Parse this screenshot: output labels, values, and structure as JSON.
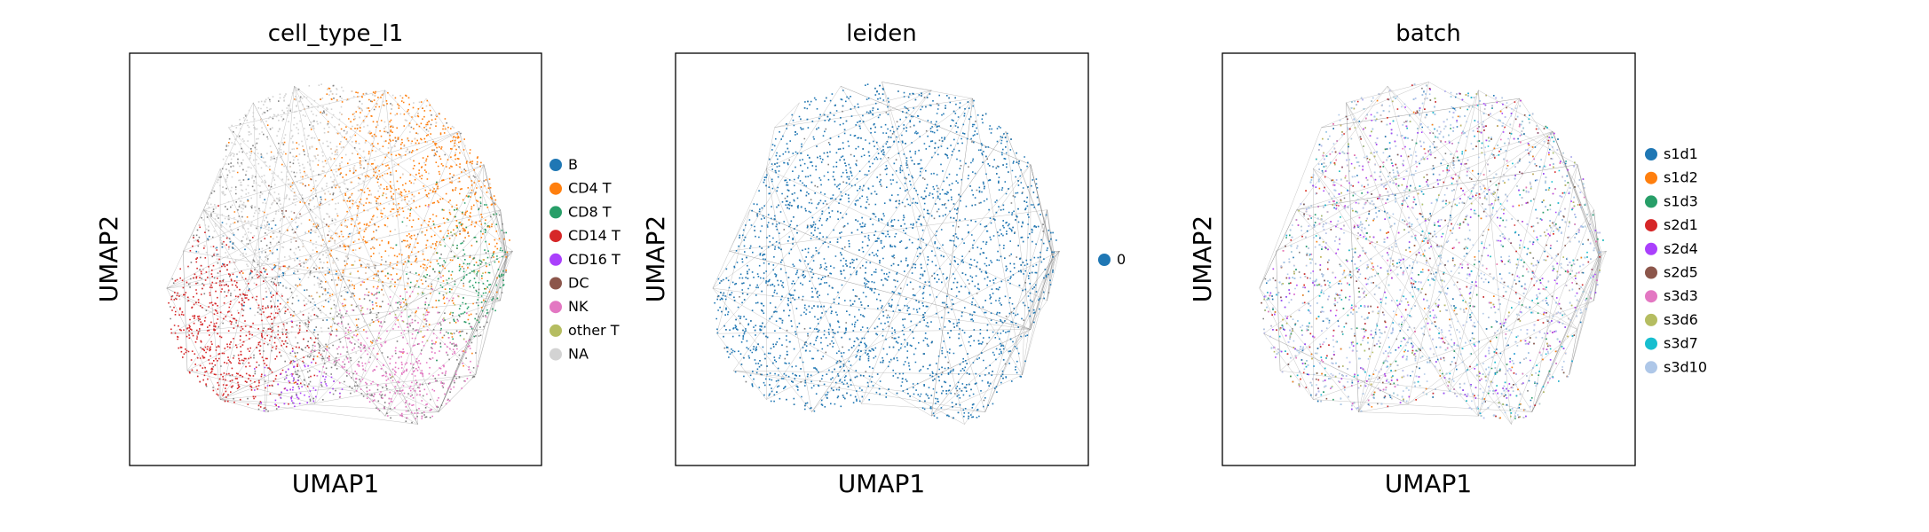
{
  "figure": {
    "description_free": true
  },
  "chart_data": [
    {
      "type": "scatter",
      "title": "cell_type_l1",
      "xlabel": "UMAP1",
      "ylabel": "UMAP2",
      "grid": false,
      "ticks": false,
      "legend_placement": "right",
      "edge_color": "#808080",
      "series": [
        {
          "name": "B",
          "color": "#1f77b4",
          "region": {
            "cx": 0.35,
            "cy": 0.5,
            "spread": 0.08
          },
          "density": 0.02
        },
        {
          "name": "CD4 T",
          "color": "#ff7f0e",
          "region": {
            "cx": 0.68,
            "cy": 0.68,
            "spread": 0.13
          },
          "density": 0.28
        },
        {
          "name": "CD8 T",
          "color": "#279e68",
          "region": {
            "cx": 0.82,
            "cy": 0.5,
            "spread": 0.08
          },
          "density": 0.1
        },
        {
          "name": "CD14 T",
          "color": "#d62728",
          "region": {
            "cx": 0.17,
            "cy": 0.3,
            "spread": 0.1
          },
          "density": 0.26
        },
        {
          "name": "CD16 T",
          "color": "#aa40fc",
          "region": {
            "cx": 0.4,
            "cy": 0.16,
            "spread": 0.05
          },
          "density": 0.05
        },
        {
          "name": "DC",
          "color": "#8c564b",
          "region": {
            "cx": 0.42,
            "cy": 0.6,
            "spread": 0.05
          },
          "density": 0.03
        },
        {
          "name": "NK",
          "color": "#e377c2",
          "region": {
            "cx": 0.66,
            "cy": 0.27,
            "spread": 0.08
          },
          "density": 0.1
        },
        {
          "name": "other T",
          "color": "#b5bd61",
          "region": {
            "cx": 0.7,
            "cy": 0.45,
            "spread": 0.1
          },
          "density": 0.01
        },
        {
          "name": "NA",
          "color": "#d3d3d3",
          "region": {
            "cx": 0.45,
            "cy": 0.72,
            "spread": 0.15
          },
          "density": 0.15
        }
      ]
    },
    {
      "type": "scatter",
      "title": "leiden",
      "xlabel": "UMAP1",
      "ylabel": "UMAP2",
      "grid": false,
      "ticks": false,
      "legend_placement": "right",
      "edge_color": "#808080",
      "series": [
        {
          "name": "0",
          "color": "#1f77b4"
        }
      ]
    },
    {
      "type": "scatter",
      "title": "batch",
      "xlabel": "UMAP1",
      "ylabel": "UMAP2",
      "grid": false,
      "ticks": false,
      "legend_placement": "right",
      "edge_color": "#808080",
      "series": [
        {
          "name": "s1d1",
          "color": "#1f77b4"
        },
        {
          "name": "s1d2",
          "color": "#ff7f0e"
        },
        {
          "name": "s1d3",
          "color": "#279e68"
        },
        {
          "name": "s2d1",
          "color": "#d62728"
        },
        {
          "name": "s2d4",
          "color": "#aa40fc"
        },
        {
          "name": "s2d5",
          "color": "#8c564b"
        },
        {
          "name": "s3d3",
          "color": "#e377c2"
        },
        {
          "name": "s3d6",
          "color": "#b5bd61"
        },
        {
          "name": "s3d7",
          "color": "#17becf"
        },
        {
          "name": "s3d10",
          "color": "#aec7e8"
        }
      ]
    }
  ]
}
